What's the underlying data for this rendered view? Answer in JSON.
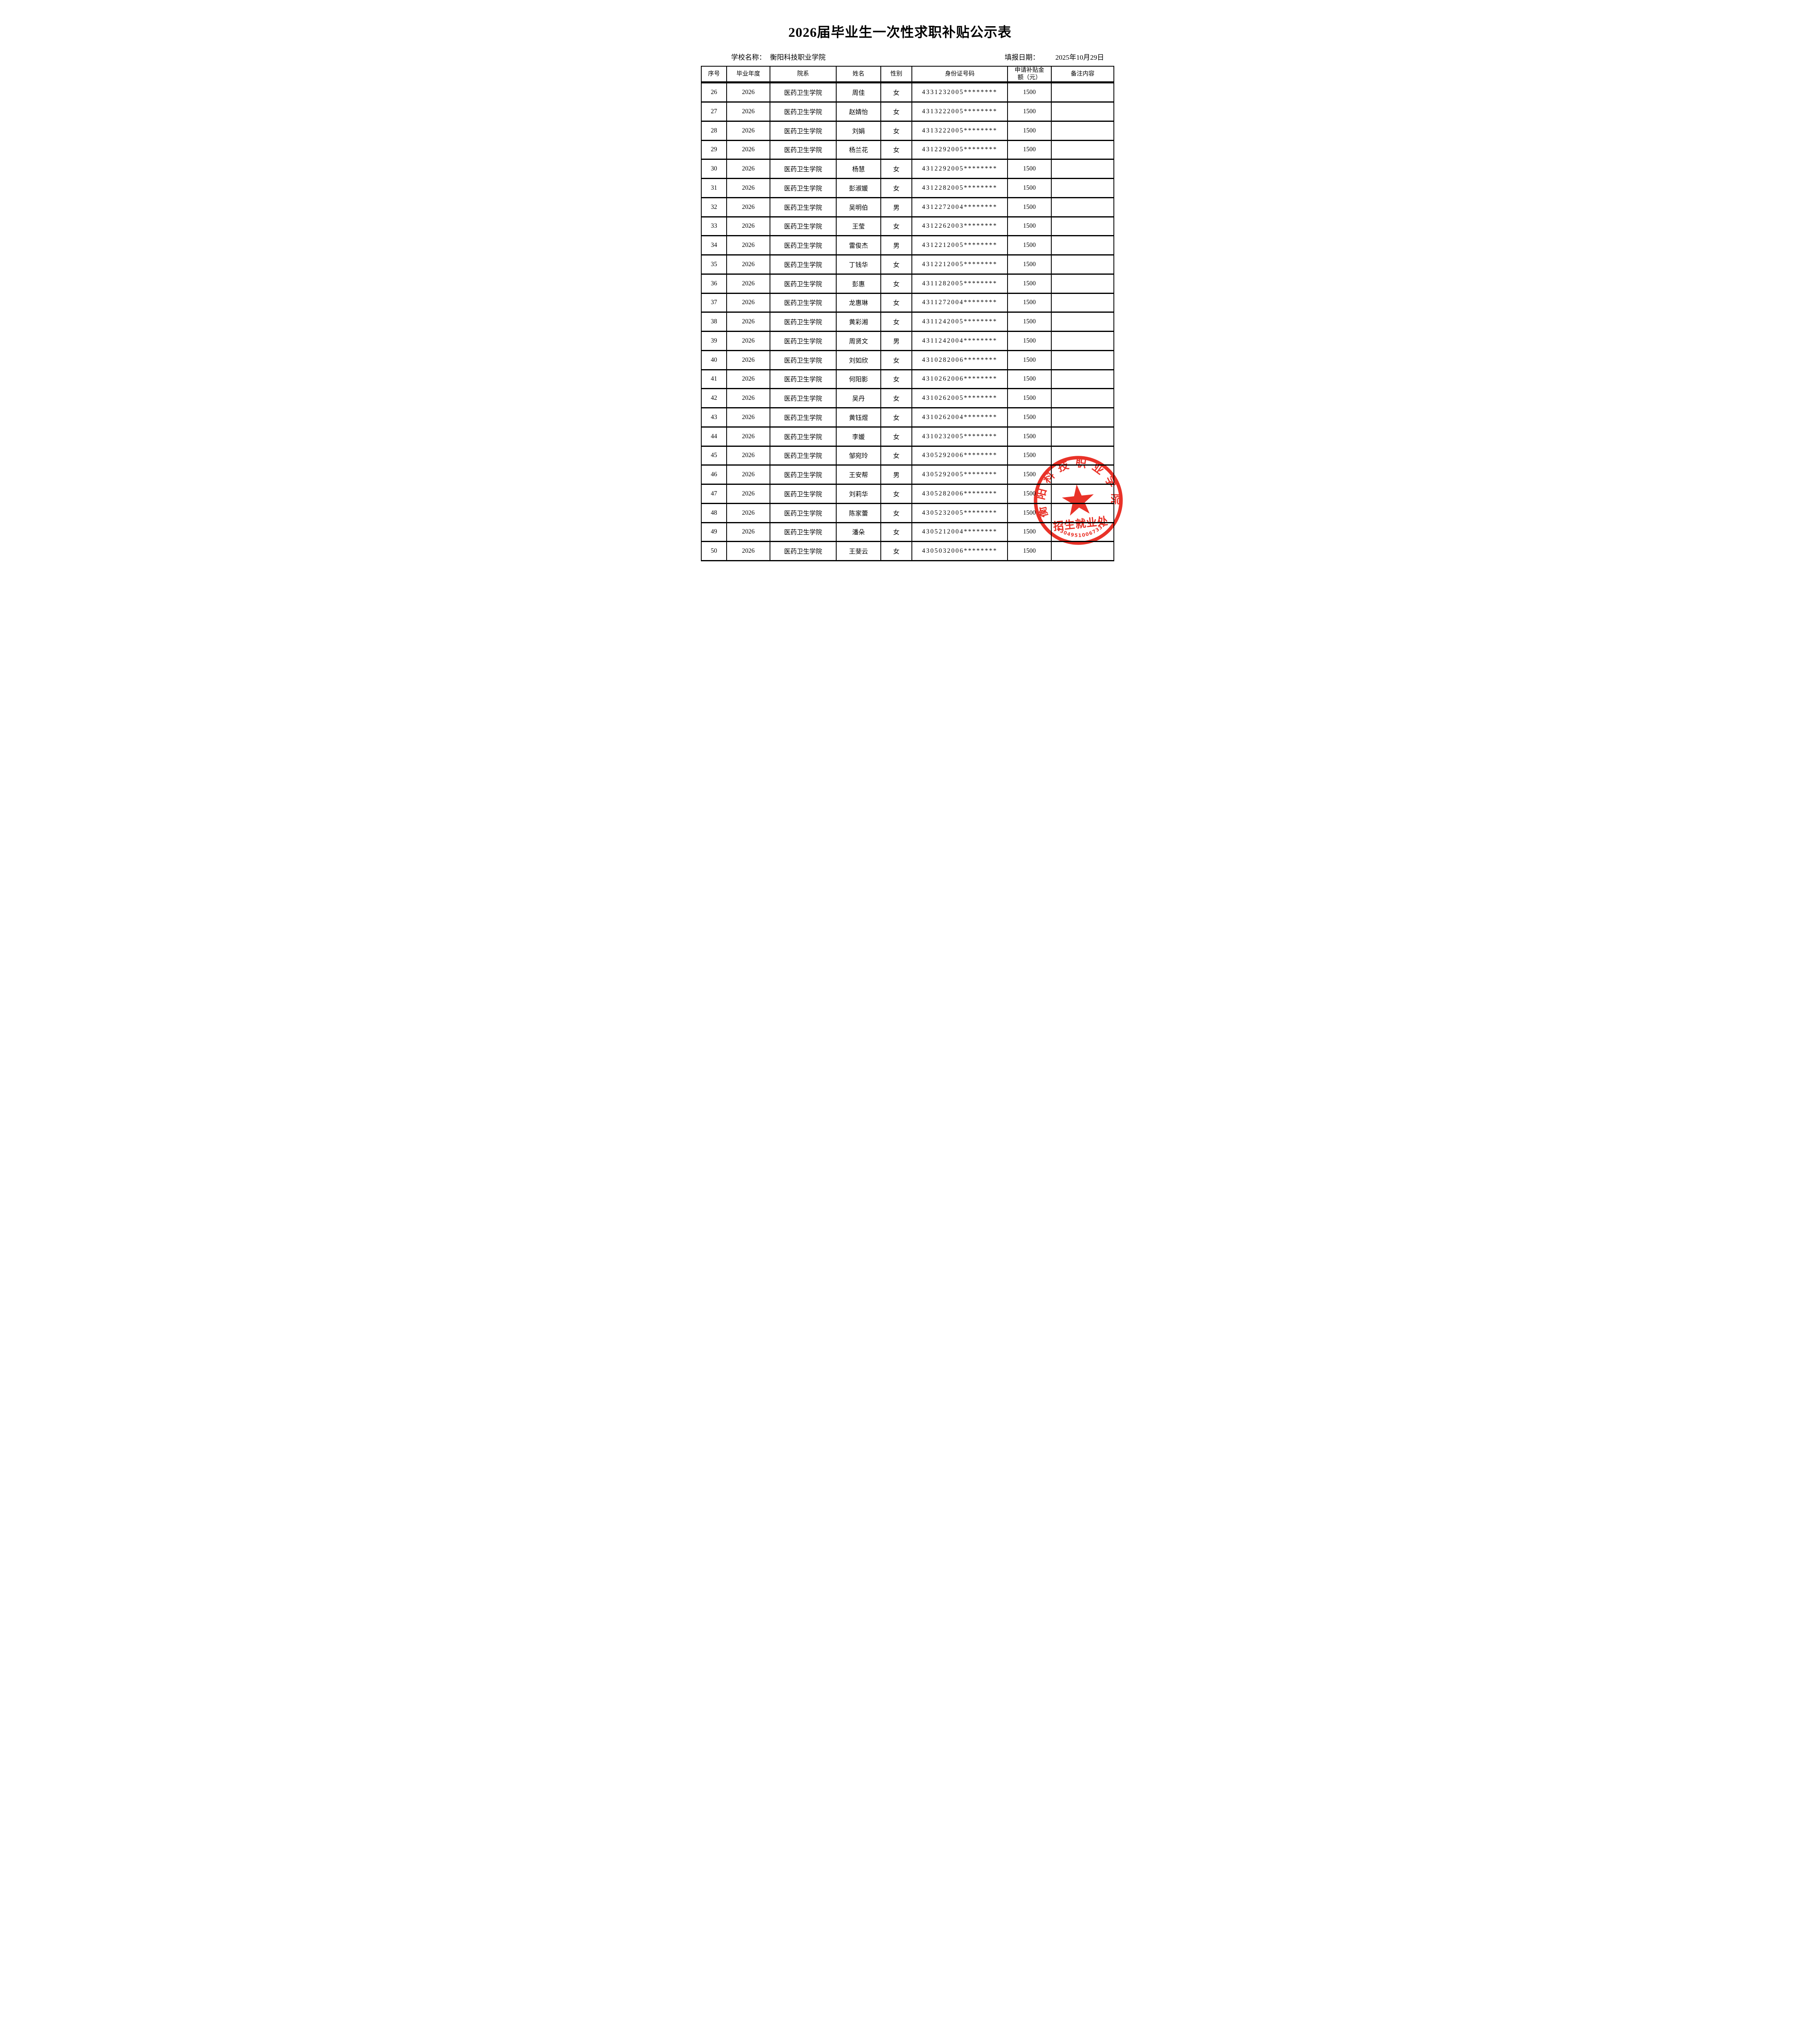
{
  "document": {
    "title": "2026届毕业生一次性求职补贴公示表",
    "school_label": "学校名称：",
    "school_name": "衡阳科技职业学院",
    "date_label": "填报日期：",
    "date_value": "2025年10月29日"
  },
  "table": {
    "columns": [
      "序号",
      "毕业年度",
      "院系",
      "姓名",
      "性别",
      "身份证号码",
      "申请补贴金额（元）",
      "备注内容"
    ],
    "col_keys": [
      "seq",
      "year",
      "department",
      "name",
      "gender",
      "id",
      "amount",
      "note"
    ],
    "rows": [
      [
        "26",
        "2026",
        "医药卫生学院",
        "周佳",
        "女",
        "4331232005********",
        "1500",
        ""
      ],
      [
        "27",
        "2026",
        "医药卫生学院",
        "赵婧怡",
        "女",
        "4313222005********",
        "1500",
        ""
      ],
      [
        "28",
        "2026",
        "医药卫生学院",
        "刘娟",
        "女",
        "4313222005********",
        "1500",
        ""
      ],
      [
        "29",
        "2026",
        "医药卫生学院",
        "杨兰花",
        "女",
        "4312292005********",
        "1500",
        ""
      ],
      [
        "30",
        "2026",
        "医药卫生学院",
        "杨慧",
        "女",
        "4312292005********",
        "1500",
        ""
      ],
      [
        "31",
        "2026",
        "医药卫生学院",
        "彭淑媛",
        "女",
        "4312282005********",
        "1500",
        ""
      ],
      [
        "32",
        "2026",
        "医药卫生学院",
        "吴明伯",
        "男",
        "4312272004********",
        "1500",
        ""
      ],
      [
        "33",
        "2026",
        "医药卫生学院",
        "王莹",
        "女",
        "4312262003********",
        "1500",
        ""
      ],
      [
        "34",
        "2026",
        "医药卫生学院",
        "雷俊杰",
        "男",
        "4312212005********",
        "1500",
        ""
      ],
      [
        "35",
        "2026",
        "医药卫生学院",
        "丁钱华",
        "女",
        "4312212005********",
        "1500",
        ""
      ],
      [
        "36",
        "2026",
        "医药卫生学院",
        "彭惠",
        "女",
        "4311282005********",
        "1500",
        ""
      ],
      [
        "37",
        "2026",
        "医药卫生学院",
        "龙惠琳",
        "女",
        "4311272004********",
        "1500",
        ""
      ],
      [
        "38",
        "2026",
        "医药卫生学院",
        "黄彩湘",
        "女",
        "4311242005********",
        "1500",
        ""
      ],
      [
        "39",
        "2026",
        "医药卫生学院",
        "周贤文",
        "男",
        "4311242004********",
        "1500",
        ""
      ],
      [
        "40",
        "2026",
        "医药卫生学院",
        "刘如欣",
        "女",
        "4310282006********",
        "1500",
        ""
      ],
      [
        "41",
        "2026",
        "医药卫生学院",
        "何阳影",
        "女",
        "4310262006********",
        "1500",
        ""
      ],
      [
        "42",
        "2026",
        "医药卫生学院",
        "吴丹",
        "女",
        "4310262005********",
        "1500",
        ""
      ],
      [
        "43",
        "2026",
        "医药卫生学院",
        "黄钰煜",
        "女",
        "4310262004********",
        "1500",
        ""
      ],
      [
        "44",
        "2026",
        "医药卫生学院",
        "李媛",
        "女",
        "4310232005********",
        "1500",
        ""
      ],
      [
        "45",
        "2026",
        "医药卫生学院",
        "邹宛玲",
        "女",
        "4305292006********",
        "1500",
        ""
      ],
      [
        "46",
        "2026",
        "医药卫生学院",
        "王安帮",
        "男",
        "4305292005********",
        "1500",
        ""
      ],
      [
        "47",
        "2026",
        "医药卫生学院",
        "刘莉华",
        "女",
        "4305282006********",
        "1500",
        ""
      ],
      [
        "48",
        "2026",
        "医药卫生学院",
        "陈家蕾",
        "女",
        "4305232005********",
        "1500",
        ""
      ],
      [
        "49",
        "2026",
        "医药卫生学院",
        "潘朵",
        "女",
        "4305212004********",
        "1500",
        ""
      ],
      [
        "50",
        "2026",
        "医药卫生学院",
        "王斐云",
        "女",
        "4305032006********",
        "1500",
        ""
      ]
    ]
  },
  "stamp": {
    "ring_text": "衡阳科技职业学院",
    "office_text": "招生就业处",
    "serial_number": "43049510067332",
    "color": "#e8251a"
  }
}
